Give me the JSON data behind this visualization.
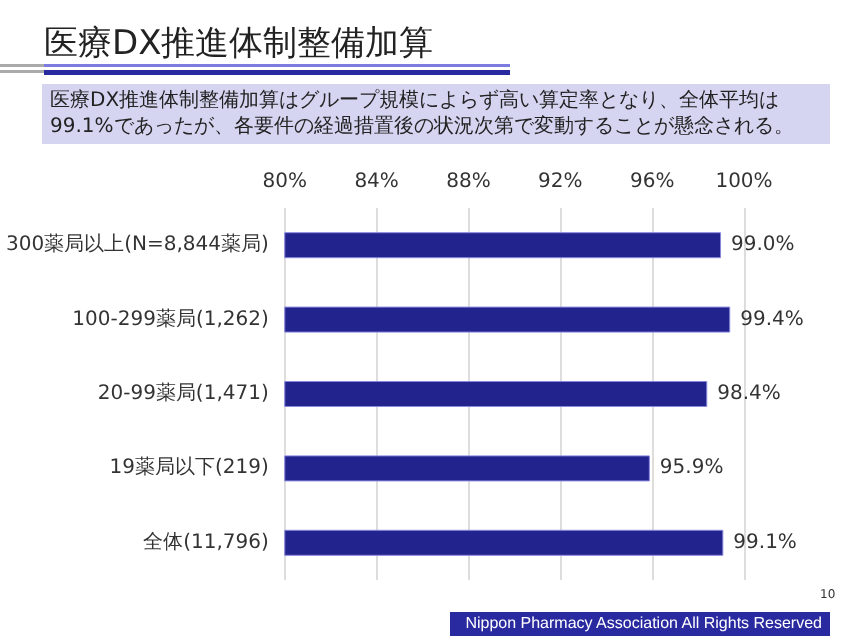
{
  "chart_data": {
    "type": "bar",
    "orientation": "horizontal",
    "title": "医療DX推進体制整備加算",
    "subtitle": "医療DX推進体制整備加算はグループ規模によらず高い算定率となり、全体平均は99.1%であったが、各要件の経過措置後の状況次第で変動することが懸念される。",
    "categories": [
      "300薬局以上(N=8,844薬局)",
      "100-299薬局(1,262)",
      "20-99薬局(1,471)",
      "19薬局以下(219)",
      "全体(11,796)"
    ],
    "values": [
      99.0,
      99.4,
      98.4,
      95.9,
      99.1
    ],
    "value_labels": [
      "99.0%",
      "99.4%",
      "98.4%",
      "95.9%",
      "99.1%"
    ],
    "color": "#23238e",
    "xlim": [
      80,
      100
    ],
    "xticks": [
      {
        "value": 80,
        "label": "80%"
      },
      {
        "value": 84,
        "label": "84%"
      },
      {
        "value": 88,
        "label": "88%"
      },
      {
        "value": 92,
        "label": "92%"
      },
      {
        "value": 96,
        "label": "96%"
      },
      {
        "value": 100,
        "label": "100%"
      }
    ],
    "grid": "x",
    "annotations": [
      "Nippon Pharmacy Association All Rights Reserved",
      "10"
    ]
  }
}
